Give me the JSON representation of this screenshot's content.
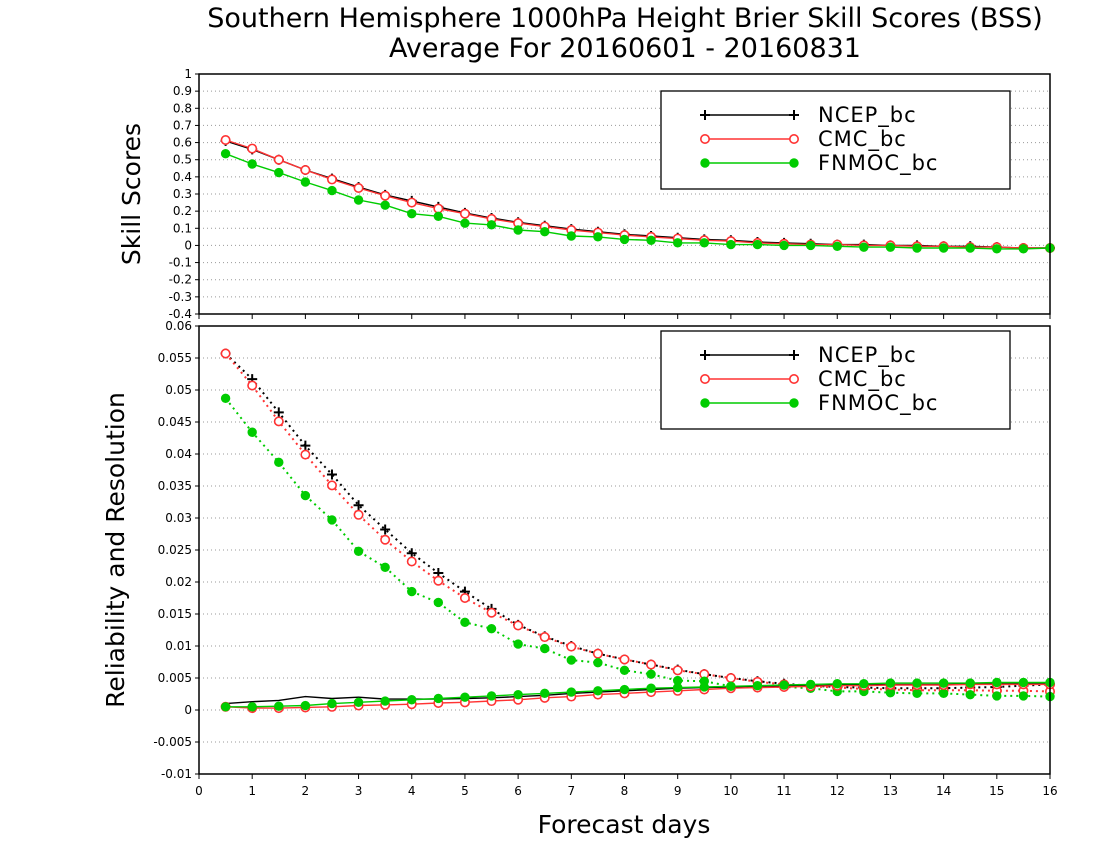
{
  "colors": {
    "NCEP_bc": "#000000",
    "CMC_bc": "#ff3333",
    "FNMOC_bc": "#00cc00"
  },
  "chart_data": {
    "type": "line",
    "title": "Southern Hemisphere 1000hPa Height Brier Skill Scores (BSS)",
    "subtitle": "Average For 20160601 - 20160831",
    "xlabel": "Forecast days",
    "xlim": [
      0,
      16
    ],
    "x_ticks": [
      "0",
      "1",
      "2",
      "3",
      "4",
      "5",
      "6",
      "7",
      "8",
      "9",
      "10",
      "11",
      "12",
      "13",
      "14",
      "15",
      "16"
    ],
    "x": [
      0.5,
      1,
      1.5,
      2,
      2.5,
      3,
      3.5,
      4,
      4.5,
      5,
      5.5,
      6,
      6.5,
      7,
      7.5,
      8,
      8.5,
      9,
      9.5,
      10,
      10.5,
      11,
      11.5,
      12,
      12.5,
      13,
      13.5,
      14,
      14.5,
      15,
      15.5,
      16
    ],
    "legend_position": "top-right",
    "panels": [
      {
        "ylabel": "Skill Scores",
        "ylim": [
          -0.4,
          1
        ],
        "y_ticks": [
          "-0.4",
          "-0.3",
          "-0.2",
          "-0.1",
          "0",
          "0.1",
          "0.2",
          "0.3",
          "0.4",
          "0.5",
          "0.6",
          "0.7",
          "0.8",
          "0.9",
          "1"
        ],
        "grid": true,
        "series": [
          {
            "name": "NCEP_bc",
            "marker": "plus",
            "line": "solid",
            "values": [
              0.61,
              0.56,
              0.5,
              0.44,
              0.39,
              0.34,
              0.295,
              0.26,
              0.225,
              0.19,
              0.16,
              0.135,
              0.115,
              0.095,
              0.08,
              0.065,
              0.055,
              0.045,
              0.035,
              0.03,
              0.02,
              0.015,
              0.01,
              0.005,
              0.005,
              0.0,
              0.0,
              -0.005,
              -0.005,
              -0.01,
              -0.015,
              -0.015
            ]
          },
          {
            "name": "CMC_bc",
            "marker": "open-circle",
            "line": "solid",
            "values": [
              0.615,
              0.565,
              0.5,
              0.44,
              0.385,
              0.335,
              0.29,
              0.25,
              0.215,
              0.185,
              0.155,
              0.13,
              0.11,
              0.09,
              0.075,
              0.06,
              0.05,
              0.04,
              0.03,
              0.025,
              0.015,
              0.01,
              0.005,
              0.005,
              0.0,
              0.0,
              -0.005,
              -0.005,
              -0.01,
              -0.01,
              -0.015,
              -0.015
            ]
          },
          {
            "name": "FNMOC_bc",
            "marker": "filled-circle",
            "line": "solid",
            "values": [
              0.535,
              0.475,
              0.425,
              0.37,
              0.32,
              0.265,
              0.235,
              0.185,
              0.17,
              0.13,
              0.12,
              0.09,
              0.08,
              0.055,
              0.05,
              0.035,
              0.03,
              0.015,
              0.015,
              0.005,
              0.005,
              0.0,
              0.0,
              -0.005,
              -0.01,
              -0.01,
              -0.015,
              -0.015,
              -0.015,
              -0.02,
              -0.02,
              -0.015
            ]
          }
        ]
      },
      {
        "ylabel": "Reliability and Resolution",
        "ylim": [
          -0.01,
          0.06
        ],
        "y_ticks": [
          "-0.01",
          "-0.005",
          "0",
          "0.005",
          "0.01",
          "0.015",
          "0.02",
          "0.025",
          "0.03",
          "0.035",
          "0.04",
          "0.045",
          "0.05",
          "0.055",
          "0.06"
        ],
        "grid": true,
        "series": [
          {
            "name": "NCEP_bc",
            "marker": "plus",
            "line": "dotted",
            "metric": "reliability",
            "values": [
              0.0557,
              0.0517,
              0.0465,
              0.0413,
              0.0368,
              0.032,
              0.0282,
              0.0245,
              0.0214,
              0.0185,
              0.0158,
              0.0133,
              0.0115,
              0.01,
              0.0088,
              0.0079,
              0.0071,
              0.0063,
              0.0056,
              0.005,
              0.0045,
              0.0041,
              0.0038,
              0.0036,
              0.0035,
              0.0034,
              0.0034,
              0.0034,
              0.0035,
              0.0036,
              0.0038,
              0.004
            ]
          },
          {
            "name": "CMC_bc",
            "marker": "open-circle",
            "line": "dotted",
            "metric": "reliability",
            "values": [
              0.0557,
              0.0507,
              0.0451,
              0.0399,
              0.0351,
              0.0305,
              0.0266,
              0.0232,
              0.0202,
              0.0175,
              0.0152,
              0.0132,
              0.0114,
              0.0099,
              0.0088,
              0.0079,
              0.0071,
              0.0062,
              0.0056,
              0.005,
              0.0044,
              0.004,
              0.0037,
              0.0035,
              0.0033,
              0.0032,
              0.0031,
              0.0031,
              0.0031,
              0.003,
              0.003,
              0.0029
            ]
          },
          {
            "name": "FNMOC_bc",
            "marker": "filled-circle",
            "line": "dotted",
            "metric": "reliability",
            "values": [
              0.0487,
              0.0434,
              0.0387,
              0.0335,
              0.0297,
              0.0248,
              0.0223,
              0.0185,
              0.0168,
              0.0137,
              0.0127,
              0.0103,
              0.0096,
              0.0078,
              0.0074,
              0.0062,
              0.0056,
              0.0046,
              0.0045,
              0.0037,
              0.0036,
              0.0036,
              0.0034,
              0.0029,
              0.0029,
              0.0027,
              0.0026,
              0.0026,
              0.0024,
              0.0022,
              0.0022,
              0.0021
            ]
          },
          {
            "name": "NCEP_bc",
            "marker": "none",
            "line": "solid",
            "metric": "resolution",
            "values": [
              0.001,
              0.0013,
              0.0015,
              0.0021,
              0.0018,
              0.002,
              0.0017,
              0.0017,
              0.0017,
              0.0018,
              0.0019,
              0.0021,
              0.0023,
              0.0026,
              0.0028,
              0.003,
              0.0032,
              0.0034,
              0.0035,
              0.0036,
              0.0037,
              0.0038,
              0.0038,
              0.0039,
              0.0039,
              0.004,
              0.004,
              0.004,
              0.0041,
              0.0041,
              0.0041,
              0.0041
            ]
          },
          {
            "name": "CMC_bc",
            "marker": "open-circle",
            "line": "solid",
            "metric": "resolution",
            "values": [
              0.0005,
              0.0003,
              0.0003,
              0.0004,
              0.0005,
              0.0007,
              0.0008,
              0.0009,
              0.0011,
              0.0012,
              0.0014,
              0.0016,
              0.0019,
              0.0021,
              0.0024,
              0.0026,
              0.0028,
              0.003,
              0.0032,
              0.0034,
              0.0035,
              0.0036,
              0.0037,
              0.0038,
              0.0038,
              0.0039,
              0.0039,
              0.0039,
              0.004,
              0.004,
              0.004,
              0.004
            ]
          },
          {
            "name": "FNMOC_bc",
            "marker": "filled-circle",
            "line": "solid",
            "metric": "resolution",
            "values": [
              0.0005,
              0.0005,
              0.0006,
              0.0007,
              0.001,
              0.0012,
              0.0014,
              0.0016,
              0.0018,
              0.002,
              0.0022,
              0.0024,
              0.0026,
              0.0028,
              0.003,
              0.0032,
              0.0034,
              0.0035,
              0.0036,
              0.0037,
              0.0038,
              0.0039,
              0.004,
              0.0041,
              0.0041,
              0.0042,
              0.0042,
              0.0042,
              0.0042,
              0.0043,
              0.0043,
              0.0043
            ]
          }
        ]
      }
    ]
  }
}
